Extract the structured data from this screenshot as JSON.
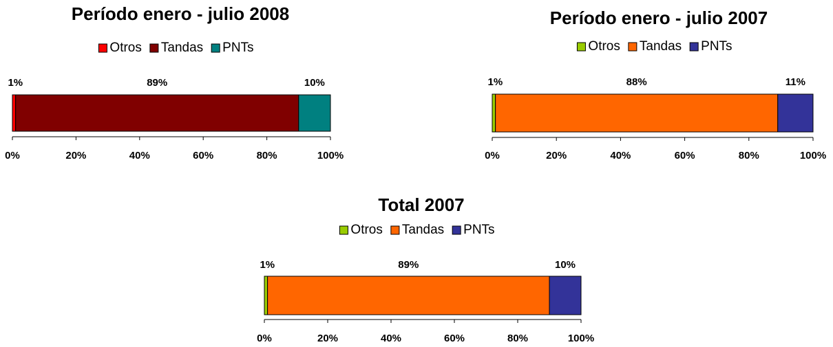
{
  "chart_data": [
    {
      "type": "bar",
      "title": "Período enero - julio 2008",
      "categories": [
        null
      ],
      "series": [
        {
          "name": "Otros",
          "color": "#ff0000",
          "values": [
            1
          ],
          "value_labels": [
            "1%"
          ]
        },
        {
          "name": "Tandas",
          "color": "#800000",
          "values": [
            89
          ],
          "value_labels": [
            "89%"
          ]
        },
        {
          "name": "PNTs",
          "color": "#008080",
          "values": [
            10
          ],
          "value_labels": [
            "10%"
          ]
        }
      ],
      "xlim": [
        0,
        100
      ],
      "xticks": [
        {
          "value": 0,
          "label": "0%"
        },
        {
          "value": 20,
          "label": "20%"
        },
        {
          "value": 40,
          "label": "40%"
        },
        {
          "value": 60,
          "label": "60%"
        },
        {
          "value": 80,
          "label": "80%"
        },
        {
          "value": 100,
          "label": "100%"
        }
      ],
      "stacked": true,
      "legend": "top"
    },
    {
      "type": "bar",
      "title": "Período enero - julio 2007",
      "categories": [
        null
      ],
      "series": [
        {
          "name": "Otros",
          "color": "#99cc00",
          "values": [
            1
          ],
          "value_labels": [
            "1%"
          ]
        },
        {
          "name": "Tandas",
          "color": "#ff6600",
          "values": [
            88
          ],
          "value_labels": [
            "88%"
          ]
        },
        {
          "name": "PNTs",
          "color": "#333399",
          "values": [
            11
          ],
          "value_labels": [
            "11%"
          ]
        }
      ],
      "xlim": [
        0,
        100
      ],
      "xticks": [
        {
          "value": 0,
          "label": "0%"
        },
        {
          "value": 20,
          "label": "20%"
        },
        {
          "value": 40,
          "label": "40%"
        },
        {
          "value": 60,
          "label": "60%"
        },
        {
          "value": 80,
          "label": "80%"
        },
        {
          "value": 100,
          "label": "100%"
        }
      ],
      "stacked": true,
      "legend": "top"
    },
    {
      "type": "bar",
      "title": "Total 2007",
      "categories": [
        null
      ],
      "series": [
        {
          "name": "Otros",
          "color": "#99cc00",
          "values": [
            1
          ],
          "value_labels": [
            "1%"
          ]
        },
        {
          "name": "Tandas",
          "color": "#ff6600",
          "values": [
            89
          ],
          "value_labels": [
            "89%"
          ]
        },
        {
          "name": "PNTs",
          "color": "#333399",
          "values": [
            10
          ],
          "value_labels": [
            "10%"
          ]
        }
      ],
      "xlim": [
        0,
        100
      ],
      "xticks": [
        {
          "value": 0,
          "label": "0%"
        },
        {
          "value": 20,
          "label": "20%"
        },
        {
          "value": 40,
          "label": "40%"
        },
        {
          "value": 60,
          "label": "60%"
        },
        {
          "value": 80,
          "label": "80%"
        },
        {
          "value": 100,
          "label": "100%"
        }
      ],
      "stacked": true,
      "legend": "top"
    }
  ]
}
